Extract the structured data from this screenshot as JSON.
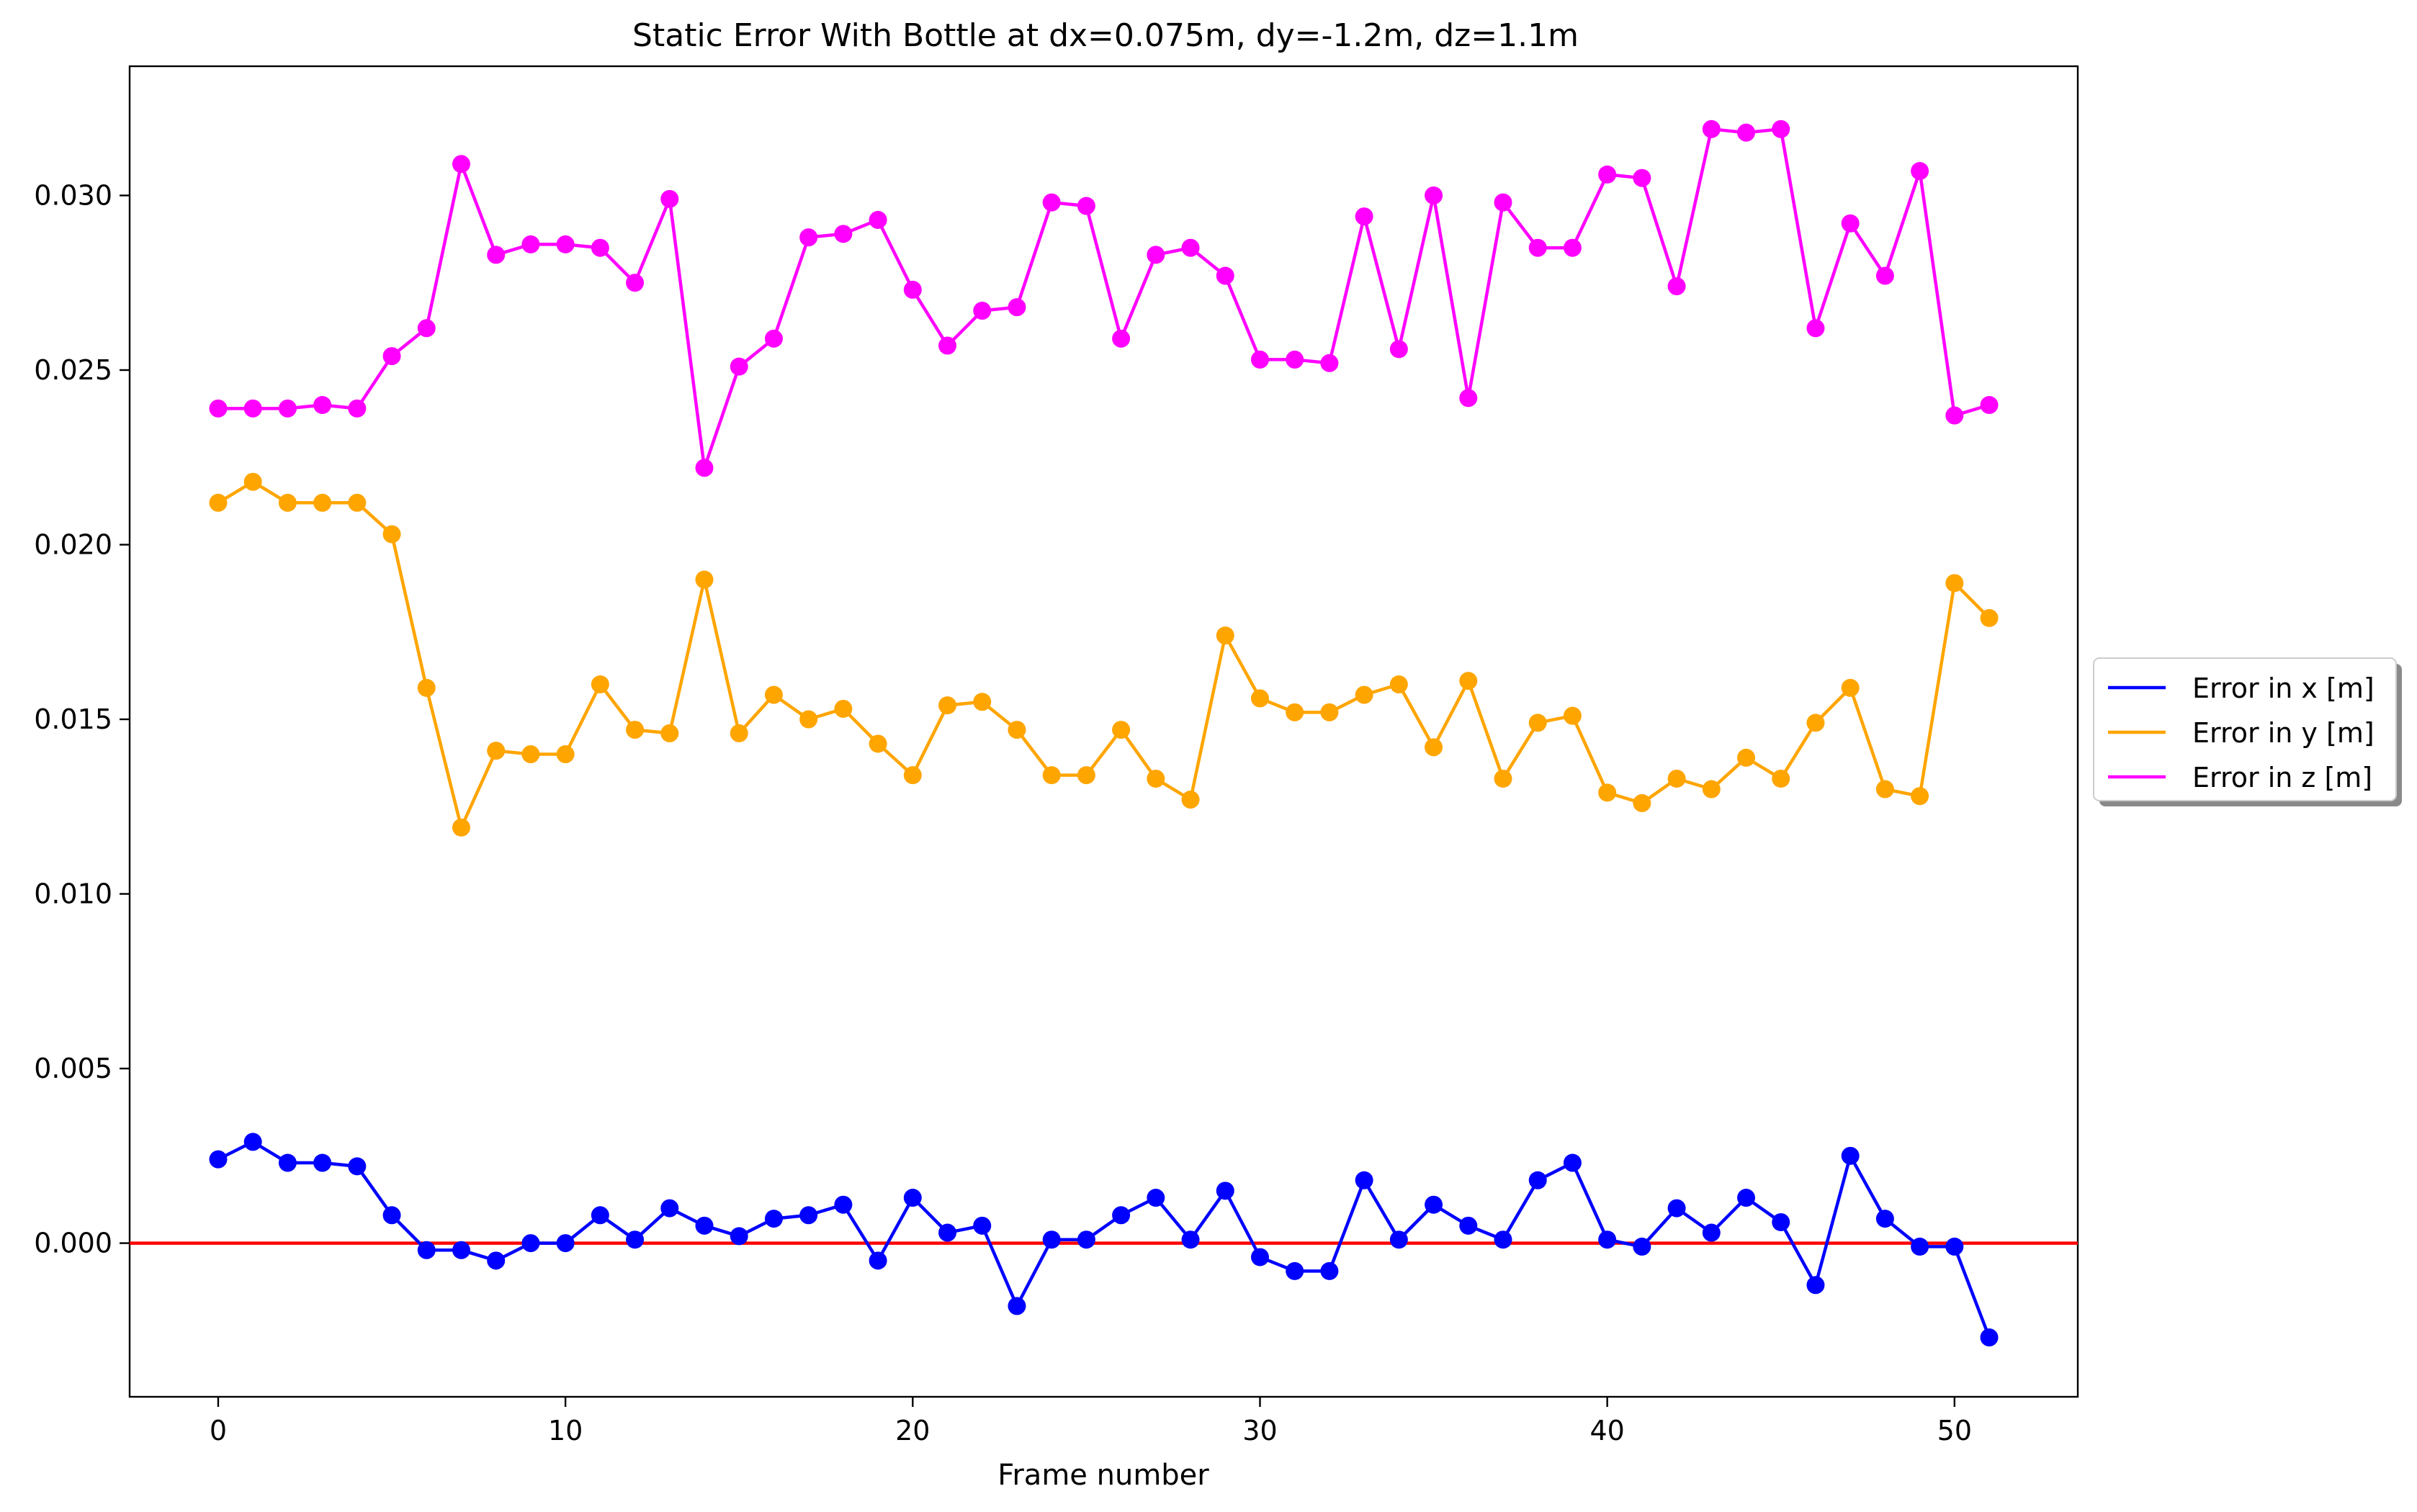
{
  "chart_data": {
    "type": "line",
    "title": "Static Error With Bottle at dx=0.075m, dy=-1.2m, dz=1.1m",
    "xlabel": "Frame number",
    "ylabel": "",
    "xlim": [
      -2.55,
      53.55
    ],
    "ylim": [
      -0.0044,
      0.0337
    ],
    "xticks": [
      0,
      10,
      20,
      30,
      40,
      50
    ],
    "yticks": [
      0.0,
      0.005,
      0.01,
      0.015,
      0.02,
      0.025,
      0.03
    ],
    "ytick_labels": [
      "0.000",
      "0.005",
      "0.010",
      "0.015",
      "0.020",
      "0.025",
      "0.030"
    ],
    "grid": false,
    "legend_position": "center-right outside",
    "reference_line": {
      "y": 0.0,
      "color": "#ff0000"
    },
    "x": [
      0,
      1,
      2,
      3,
      4,
      5,
      6,
      7,
      8,
      9,
      10,
      11,
      12,
      13,
      14,
      15,
      16,
      17,
      18,
      19,
      20,
      21,
      22,
      23,
      24,
      25,
      26,
      27,
      28,
      29,
      30,
      31,
      32,
      33,
      34,
      35,
      36,
      37,
      38,
      39,
      40,
      41,
      42,
      43,
      44,
      45,
      46,
      47,
      48,
      49,
      50,
      51
    ],
    "series": [
      {
        "name": "Error in x [m]",
        "color": "#0000ff",
        "values": [
          0.0024,
          0.0029,
          0.0023,
          0.0023,
          0.0022,
          0.0008,
          -0.0002,
          -0.0002,
          -0.0005,
          0.0,
          0.0,
          0.0008,
          0.0001,
          0.001,
          0.0005,
          0.0002,
          0.0007,
          0.0008,
          0.0011,
          -0.0005,
          0.0013,
          0.0003,
          0.0005,
          -0.0018,
          0.0001,
          0.0001,
          0.0008,
          0.0013,
          0.0001,
          0.0015,
          -0.0004,
          -0.0008,
          -0.0008,
          0.0018,
          0.0001,
          0.0011,
          0.0005,
          0.0001,
          0.0018,
          0.0023,
          0.0001,
          -0.0001,
          0.001,
          0.0003,
          0.0013,
          0.0006,
          -0.0012,
          0.0025,
          0.0007,
          -0.0001,
          -0.0001,
          -0.0027
        ]
      },
      {
        "name": "Error in y [m]",
        "color": "#ffa500",
        "values": [
          0.0212,
          0.0218,
          0.0212,
          0.0212,
          0.0212,
          0.0203,
          0.0159,
          0.0119,
          0.0141,
          0.014,
          0.014,
          0.016,
          0.0147,
          0.0146,
          0.019,
          0.0146,
          0.0157,
          0.015,
          0.0153,
          0.0143,
          0.0134,
          0.0154,
          0.0155,
          0.0147,
          0.0134,
          0.0134,
          0.0147,
          0.0133,
          0.0127,
          0.0174,
          0.0156,
          0.0152,
          0.0152,
          0.0157,
          0.016,
          0.0142,
          0.0161,
          0.0133,
          0.0149,
          0.0151,
          0.0129,
          0.0126,
          0.0133,
          0.013,
          0.0139,
          0.0133,
          0.0149,
          0.0159,
          0.013,
          0.0128,
          0.0189,
          0.0179
        ]
      },
      {
        "name": "Error in z [m]",
        "color": "#ff00ff",
        "values": [
          0.0239,
          0.0239,
          0.0239,
          0.024,
          0.0239,
          0.0254,
          0.0262,
          0.0309,
          0.0283,
          0.0286,
          0.0286,
          0.0285,
          0.0275,
          0.0299,
          0.0222,
          0.0251,
          0.0259,
          0.0288,
          0.0289,
          0.0293,
          0.0273,
          0.0257,
          0.0267,
          0.0268,
          0.0298,
          0.0297,
          0.0259,
          0.0283,
          0.0285,
          0.0277,
          0.0253,
          0.0253,
          0.0252,
          0.0294,
          0.0256,
          0.03,
          0.0242,
          0.0298,
          0.0285,
          0.0285,
          0.0306,
          0.0305,
          0.0274,
          0.0319,
          0.0318,
          0.0319,
          0.0262,
          0.0292,
          0.0277,
          0.0307,
          0.0237,
          0.024
        ]
      }
    ]
  }
}
